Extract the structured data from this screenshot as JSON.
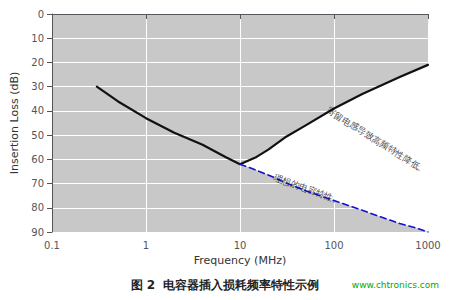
{
  "chart_data": {
    "type": "line",
    "title": "图 2  电容器插入损耗频率特性示例",
    "xlabel": "Frequency (MHz)",
    "ylabel": "Insertion Loss (dB)",
    "log": "x",
    "xlim": [
      0.1,
      1000
    ],
    "ylim": [
      90,
      0
    ],
    "xticks": [
      0.1,
      1,
      10,
      100,
      1000
    ],
    "yticks": [
      0,
      10,
      20,
      30,
      40,
      50,
      60,
      70,
      80,
      90
    ],
    "grid": true,
    "series": [
      {
        "x": [
          0.3,
          0.5,
          1.0,
          2.0,
          4.0,
          7.0,
          10.0,
          15.0,
          20.0,
          30.0,
          50.0,
          100.0,
          200.0,
          500.0,
          1000.0
        ],
        "values": [
          30,
          36,
          43,
          49,
          54,
          59,
          62,
          59,
          56,
          51,
          46,
          39,
          33,
          26,
          21
        ],
        "color": "#111111",
        "line_style": "solid"
      },
      {
        "x": [
          10.0,
          15.0,
          20.0,
          30.0,
          50.0,
          100.0,
          200.0,
          300.0,
          500.0,
          700.0,
          1000.0
        ],
        "values": [
          62,
          64.5,
          66.5,
          69.5,
          73,
          77,
          81,
          83.5,
          86.5,
          88,
          90
        ],
        "color": "#1111cc",
        "line_style": "dashed"
      }
    ],
    "fill": {
      "color": "#ffffff",
      "upper": {
        "x": [
          10.0,
          15.0,
          20.0,
          30.0,
          50.0,
          100.0,
          200.0,
          500.0,
          1000.0
        ],
        "values": [
          62,
          59,
          56,
          51,
          46,
          39,
          33,
          26,
          21
        ]
      },
      "lower": {
        "x": [
          10.0,
          15.0,
          20.0,
          30.0,
          50.0,
          100.0,
          200.0,
          300.0,
          500.0,
          700.0,
          1000.0
        ],
        "values": [
          62,
          64.5,
          66.5,
          69.5,
          73,
          77,
          81,
          83.5,
          86.5,
          88,
          90
        ]
      }
    },
    "annotations": [
      {
        "text": "寄留电感导致高频特性降低。",
        "x": 80,
        "y": 41
      },
      {
        "text": "理想的电容特性。",
        "x": 22,
        "y": 69
      }
    ],
    "watermark": {
      "text": "www.chtronics.com",
      "color": "#00aa00"
    }
  }
}
